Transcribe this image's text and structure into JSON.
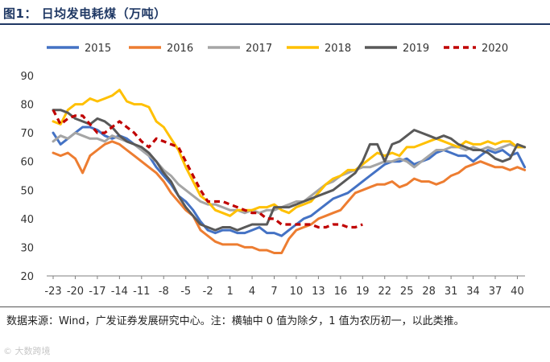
{
  "figure": {
    "title": "图1：  日均发电耗煤（万吨）",
    "note": "数据来源：Wind，广发证券发展研究中心。注：横轴中 0 值为除夕，1 值为农历初一，以此类推。",
    "watermark": "© 大数跨境"
  },
  "chart_data": {
    "type": "line",
    "title": "日均发电耗煤（万吨）",
    "xlabel": "",
    "ylabel": "",
    "xlim": [
      -23,
      42
    ],
    "ylim": [
      20,
      90
    ],
    "yticks": [
      20,
      30,
      40,
      50,
      60,
      70,
      80,
      90
    ],
    "xticks": [
      -23,
      -20,
      -17,
      -14,
      -11,
      -8,
      -5,
      -2,
      1,
      4,
      7,
      10,
      13,
      16,
      19,
      22,
      25,
      28,
      31,
      34,
      37,
      40
    ],
    "grid": false,
    "legend_position": "top",
    "series": [
      {
        "name": "2015",
        "color": "#4472c4",
        "dash": "solid",
        "x": [
          -23,
          -22,
          -21,
          -20,
          -19,
          -18,
          -17,
          -16,
          -15,
          -14,
          -13,
          -12,
          -11,
          -10,
          -9,
          -8,
          -7,
          -6,
          -5,
          -4,
          -3,
          -2,
          -1,
          0,
          1,
          2,
          3,
          4,
          5,
          6,
          7,
          8,
          9,
          10,
          11,
          12,
          13,
          14,
          15,
          16,
          17,
          18,
          19,
          20,
          21,
          22,
          23,
          24,
          25,
          26,
          27,
          28,
          29,
          30,
          31,
          32,
          33,
          34,
          35,
          36,
          37,
          38,
          39,
          40,
          41
        ],
        "y": [
          70,
          66,
          68,
          70,
          72,
          72,
          71,
          69,
          68,
          69,
          68,
          66,
          64,
          62,
          58,
          55,
          52,
          48,
          46,
          43,
          39,
          36,
          35,
          36,
          36,
          35,
          35,
          36,
          37,
          35,
          35,
          34,
          36,
          38,
          40,
          41,
          43,
          45,
          47,
          48,
          49,
          51,
          53,
          55,
          57,
          59,
          60,
          60,
          61,
          59,
          60,
          61,
          63,
          64,
          63,
          62,
          62,
          60,
          62,
          64,
          63,
          64,
          62,
          63,
          58
        ]
      },
      {
        "name": "2016",
        "color": "#ed7d31",
        "dash": "solid",
        "x": [
          -23,
          -22,
          -21,
          -20,
          -19,
          -18,
          -17,
          -16,
          -15,
          -14,
          -13,
          -12,
          -11,
          -10,
          -9,
          -8,
          -7,
          -6,
          -5,
          -4,
          -3,
          -2,
          -1,
          0,
          1,
          2,
          3,
          4,
          5,
          6,
          7,
          8,
          9,
          10,
          11,
          12,
          13,
          14,
          15,
          16,
          17,
          18,
          19,
          20,
          21,
          22,
          23,
          24,
          25,
          26,
          27,
          28,
          29,
          30,
          31,
          32,
          33,
          34,
          35,
          36,
          37,
          38,
          39,
          40,
          41
        ],
        "y": [
          63,
          62,
          63,
          61,
          56,
          62,
          64,
          66,
          67,
          66,
          64,
          62,
          60,
          58,
          56,
          53,
          49,
          46,
          43,
          41,
          36,
          34,
          32,
          31,
          31,
          31,
          30,
          30,
          29,
          29,
          28,
          28,
          33,
          36,
          37,
          38,
          40,
          41,
          42,
          43,
          46,
          49,
          50,
          51,
          52,
          52,
          53,
          51,
          52,
          54,
          53,
          53,
          52,
          53,
          55,
          56,
          58,
          59,
          60,
          59,
          58,
          58,
          57,
          58,
          57
        ]
      },
      {
        "name": "2017",
        "color": "#a5a5a5",
        "dash": "solid",
        "x": [
          -23,
          -22,
          -21,
          -20,
          -19,
          -18,
          -17,
          -16,
          -15,
          -14,
          -13,
          -12,
          -11,
          -10,
          -9,
          -8,
          -7,
          -6,
          -5,
          -4,
          -3,
          -2,
          -1,
          0,
          1,
          2,
          3,
          4,
          5,
          6,
          7,
          8,
          9,
          10,
          11,
          12,
          13,
          14,
          15,
          16,
          17,
          18,
          19,
          20,
          21,
          22,
          23,
          24,
          25,
          26,
          27,
          28,
          29,
          30,
          31,
          32,
          33,
          34,
          35,
          36,
          37,
          38,
          39,
          40,
          41
        ],
        "y": [
          67,
          69,
          68,
          70,
          69,
          68,
          68,
          67,
          69,
          68,
          67,
          66,
          64,
          62,
          60,
          57,
          55,
          52,
          50,
          48,
          46,
          45,
          45,
          44,
          43,
          43,
          42,
          43,
          42,
          43,
          43,
          44,
          45,
          46,
          46,
          48,
          50,
          52,
          53,
          55,
          56,
          57,
          58,
          58,
          59,
          60,
          60,
          61,
          60,
          58,
          60,
          62,
          64,
          64,
          65,
          65,
          64,
          65,
          64,
          65,
          64,
          65,
          66,
          65,
          65
        ]
      },
      {
        "name": "2018",
        "color": "#ffc000",
        "dash": "solid",
        "x": [
          -23,
          -22,
          -21,
          -20,
          -19,
          -18,
          -17,
          -16,
          -15,
          -14,
          -13,
          -12,
          -11,
          -10,
          -9,
          -8,
          -7,
          -6,
          -5,
          -4,
          -3,
          -2,
          -1,
          0,
          1,
          2,
          3,
          4,
          5,
          6,
          7,
          8,
          9,
          10,
          11,
          12,
          13,
          14,
          15,
          16,
          17,
          18,
          19,
          20,
          21,
          22,
          23,
          24,
          25,
          26,
          27,
          28,
          29,
          30,
          31,
          32,
          33,
          34,
          35,
          36,
          37,
          38,
          39,
          40,
          41
        ],
        "y": [
          74,
          73,
          78,
          80,
          80,
          82,
          81,
          82,
          83,
          85,
          81,
          80,
          80,
          79,
          74,
          72,
          68,
          64,
          58,
          53,
          48,
          46,
          43,
          42,
          41,
          43,
          43,
          43,
          44,
          44,
          45,
          43,
          42,
          44,
          45,
          46,
          49,
          52,
          54,
          55,
          57,
          57,
          59,
          61,
          63,
          62,
          63,
          62,
          65,
          65,
          66,
          67,
          68,
          67,
          66,
          65,
          67,
          66,
          66,
          67,
          66,
          67,
          67,
          65,
          65
        ]
      },
      {
        "name": "2019",
        "color": "#595959",
        "dash": "solid",
        "x": [
          -23,
          -22,
          -21,
          -20,
          -19,
          -18,
          -17,
          -16,
          -15,
          -14,
          -13,
          -12,
          -11,
          -10,
          -9,
          -8,
          -7,
          -6,
          -5,
          -4,
          -3,
          -2,
          -1,
          0,
          1,
          2,
          3,
          4,
          5,
          6,
          7,
          8,
          9,
          10,
          11,
          12,
          13,
          14,
          15,
          16,
          17,
          18,
          19,
          20,
          21,
          22,
          23,
          24,
          25,
          26,
          27,
          28,
          29,
          30,
          31,
          32,
          33,
          34,
          35,
          36,
          37,
          38,
          39,
          40,
          41
        ],
        "y": [
          78,
          78,
          77,
          75,
          74,
          73,
          75,
          74,
          72,
          69,
          67,
          66,
          65,
          63,
          60,
          56,
          53,
          48,
          44,
          41,
          38,
          37,
          36,
          37,
          37,
          36,
          37,
          38,
          38,
          38,
          44,
          44,
          44,
          45,
          46,
          47,
          48,
          49,
          50,
          52,
          54,
          56,
          60,
          66,
          66,
          60,
          66,
          67,
          69,
          71,
          70,
          69,
          68,
          69,
          68,
          66,
          65,
          64,
          64,
          63,
          61,
          60,
          61,
          66,
          65
        ]
      },
      {
        "name": "2020",
        "color": "#c00000",
        "dash": "dashed",
        "x": [
          -23,
          -22,
          -21,
          -20,
          -19,
          -18,
          -17,
          -16,
          -15,
          -14,
          -13,
          -12,
          -11,
          -10,
          -9,
          -8,
          -7,
          -6,
          -5,
          -4,
          -3,
          -2,
          -1,
          0,
          1,
          2,
          3,
          4,
          5,
          6,
          7,
          8,
          9,
          10,
          11,
          12,
          13,
          14,
          15,
          16,
          17,
          18,
          19
        ],
        "y": [
          78,
          73,
          75,
          76,
          76,
          73,
          70,
          70,
          72,
          74,
          72,
          70,
          67,
          65,
          68,
          67,
          66,
          65,
          60,
          55,
          50,
          46,
          46,
          46,
          45,
          44,
          43,
          42,
          42,
          40,
          40,
          38,
          38,
          38,
          38,
          38,
          37,
          37,
          38,
          38,
          37,
          37,
          38
        ]
      }
    ]
  }
}
